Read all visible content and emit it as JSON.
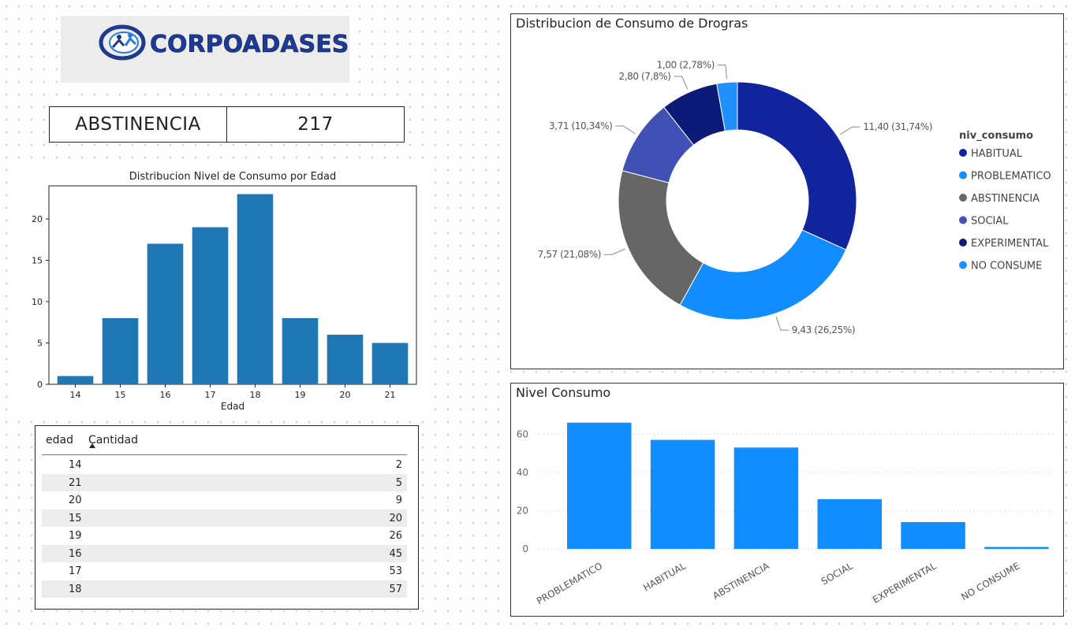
{
  "logo": {
    "brand_text": "CORPOADASES"
  },
  "kpi": {
    "label": "ABSTINENCIA",
    "value": "217"
  },
  "age_chart": {
    "title": "Distribucion Nivel de Consumo por Edad",
    "xlabel": "Edad",
    "bar_color": "#1f77b4"
  },
  "age_table": {
    "col_edad": "edad",
    "col_cantidad": "Cantidad",
    "rows": [
      {
        "edad": "14",
        "cantidad": "2"
      },
      {
        "edad": "21",
        "cantidad": "5"
      },
      {
        "edad": "20",
        "cantidad": "9"
      },
      {
        "edad": "15",
        "cantidad": "20"
      },
      {
        "edad": "19",
        "cantidad": "26"
      },
      {
        "edad": "16",
        "cantidad": "45"
      },
      {
        "edad": "17",
        "cantidad": "53"
      },
      {
        "edad": "18",
        "cantidad": "57"
      }
    ]
  },
  "donut": {
    "title": "Distribucion de Consumo de Drogras",
    "legend_title": "niv_consumo"
  },
  "bar": {
    "title": "Nivel Consumo",
    "bar_color": "#118dff"
  },
  "chart_data": [
    {
      "type": "bar",
      "title": "Distribucion Nivel de Consumo por Edad",
      "xlabel": "Edad",
      "ylabel": "",
      "categories": [
        "14",
        "15",
        "16",
        "17",
        "18",
        "19",
        "20",
        "21"
      ],
      "values": [
        1,
        8,
        17,
        19,
        23,
        8,
        6,
        5
      ],
      "ylim": [
        0,
        24
      ],
      "yticks": [
        0,
        5,
        10,
        15,
        20
      ]
    },
    {
      "type": "pie",
      "title": "Distribucion de Consumo de Drogras",
      "legend_title": "niv_consumo",
      "slices": [
        {
          "name": "HABITUAL",
          "value": 11.4,
          "label": "11,40 (31,74%)",
          "color": "#12239e"
        },
        {
          "name": "PROBLEMATICO",
          "value": 9.43,
          "label": "9,43 (26,25%)",
          "color": "#118dff"
        },
        {
          "name": "ABSTINENCIA",
          "value": 7.57,
          "label": "7,57 (21,08%)",
          "color": "#666666"
        },
        {
          "name": "SOCIAL",
          "value": 3.71,
          "label": "3,71 (10,34%)",
          "color": "#4150b5"
        },
        {
          "name": "EXPERIMENTAL",
          "value": 2.8,
          "label": "2,80 (7,8%)",
          "color": "#0d1b78"
        },
        {
          "name": "NO CONSUME",
          "value": 1.0,
          "label": "1,00 (2,78%)",
          "color": "#1e90ff"
        }
      ]
    },
    {
      "type": "bar",
      "title": "Nivel Consumo",
      "categories": [
        "PROBLEMATICO",
        "HABITUAL",
        "ABSTINENCIA",
        "SOCIAL",
        "EXPERIMENTAL",
        "NO CONSUME"
      ],
      "values": [
        66,
        57,
        53,
        26,
        14,
        1
      ],
      "ylim": [
        0,
        70
      ],
      "yticks": [
        0,
        20,
        40,
        60
      ],
      "grid": true
    }
  ]
}
